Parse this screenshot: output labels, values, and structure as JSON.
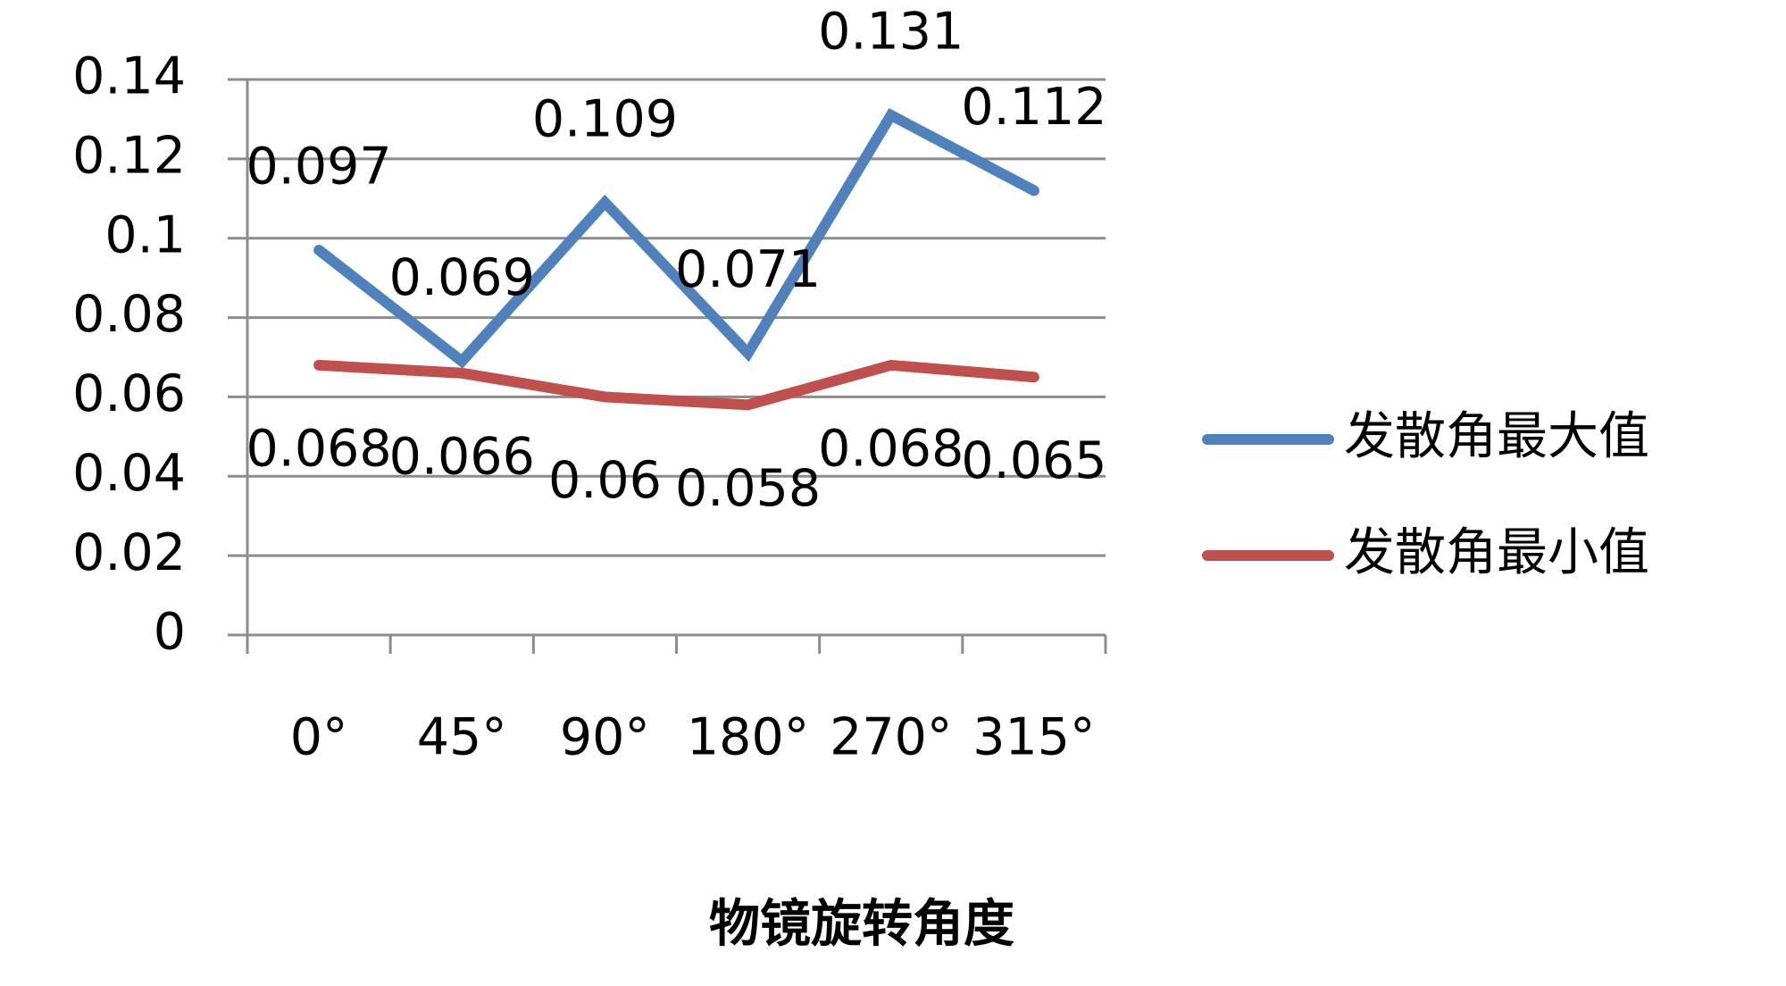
{
  "chart_data": {
    "type": "line",
    "x_label": "物镜旋转角度",
    "categories": [
      "0°",
      "45°",
      "90°",
      "180°",
      "270°",
      "315°"
    ],
    "series": [
      {
        "name": "发散角最大值",
        "color": "#4f81bd",
        "values": [
          0.097,
          0.069,
          0.109,
          0.071,
          0.131,
          0.112
        ]
      },
      {
        "name": "发散角最小值",
        "color": "#c0504d",
        "values": [
          0.068,
          0.066,
          0.06,
          0.058,
          0.068,
          0.065
        ]
      }
    ],
    "ylim": [
      0,
      0.14
    ],
    "yticks": [
      0,
      0.02,
      0.04,
      0.06,
      0.08,
      0.1,
      0.12,
      0.14
    ],
    "grid": true,
    "legend": "right"
  }
}
